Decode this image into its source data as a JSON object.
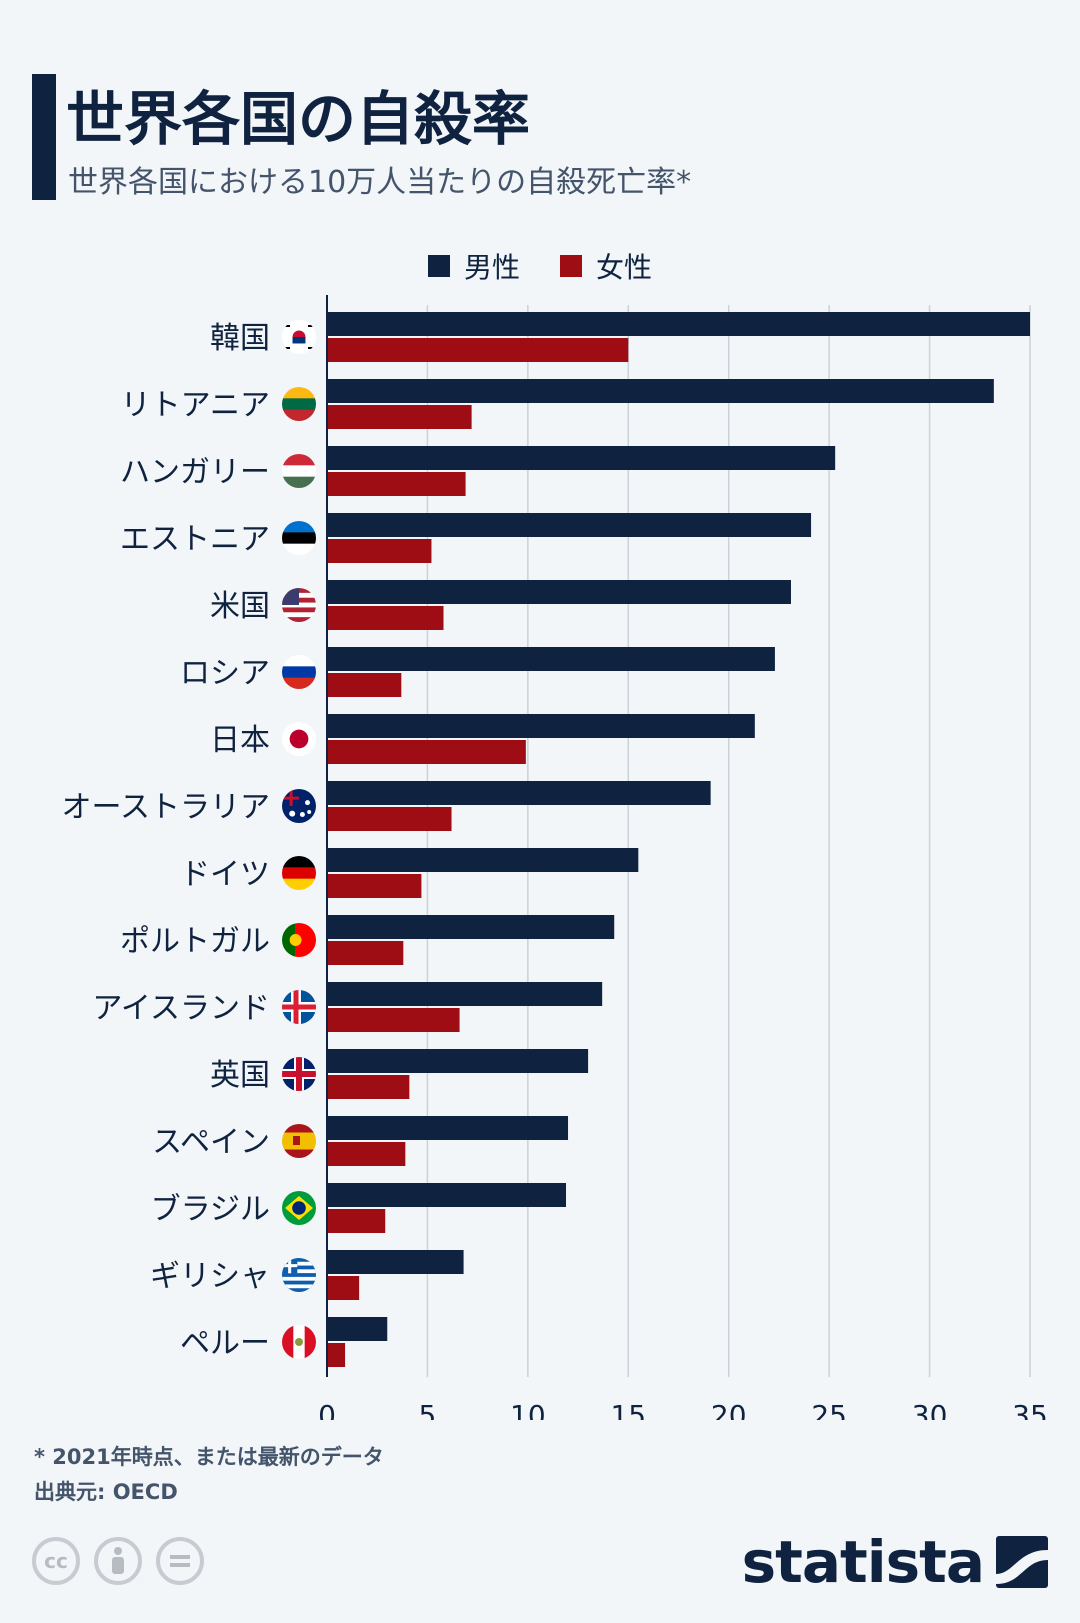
{
  "header": {
    "title": "世界各国の自殺率",
    "subtitle": "世界各国における10万人当たりの自殺死亡率*"
  },
  "legend": {
    "male_label": "男性",
    "female_label": "女性"
  },
  "colors": {
    "male": "#0f2340",
    "female": "#9e0d13",
    "grid": "#c9d1da"
  },
  "chart_data": {
    "type": "bar",
    "orientation": "horizontal",
    "title": "世界各国の自殺率",
    "subtitle": "世界各国における10万人当たりの自殺死亡率*",
    "xlabel": "",
    "ylabel": "",
    "xlim": [
      0,
      35
    ],
    "x_ticks": [
      0,
      5,
      10,
      15,
      20,
      25,
      30,
      35
    ],
    "grid": true,
    "legend_position": "top",
    "categories": [
      "韓国",
      "リトアニア",
      "ハンガリー",
      "エストニア",
      "米国",
      "ロシア",
      "日本",
      "オーストラリア",
      "ドイツ",
      "ポルトガル",
      "アイスランド",
      "英国",
      "スペイン",
      "ブラジル",
      "ギリシャ",
      "ペルー"
    ],
    "flags": [
      "flag-korea-icon",
      "flag-lithuania-icon",
      "flag-hungary-icon",
      "flag-estonia-icon",
      "flag-usa-icon",
      "flag-russia-icon",
      "flag-japan-icon",
      "flag-australia-icon",
      "flag-germany-icon",
      "flag-portugal-icon",
      "flag-iceland-icon",
      "flag-uk-icon",
      "flag-spain-icon",
      "flag-brazil-icon",
      "flag-greece-icon",
      "flag-peru-icon"
    ],
    "series": [
      {
        "name": "男性",
        "values": [
          35.0,
          33.2,
          25.3,
          24.1,
          23.1,
          22.3,
          21.3,
          19.1,
          15.5,
          14.3,
          13.7,
          13.0,
          12.0,
          11.9,
          6.8,
          3.0
        ]
      },
      {
        "name": "女性",
        "values": [
          15.0,
          7.2,
          6.9,
          5.2,
          5.8,
          3.7,
          9.9,
          6.2,
          4.7,
          3.8,
          6.6,
          4.1,
          3.9,
          2.9,
          1.6,
          0.9
        ]
      }
    ]
  },
  "footer": {
    "footnote": "* 2021年時点、または最新のデータ",
    "source": "出典元: OECD",
    "license_icons": [
      "cc-icon",
      "attribution-icon",
      "no-derivatives-icon"
    ],
    "brand": "statista"
  }
}
